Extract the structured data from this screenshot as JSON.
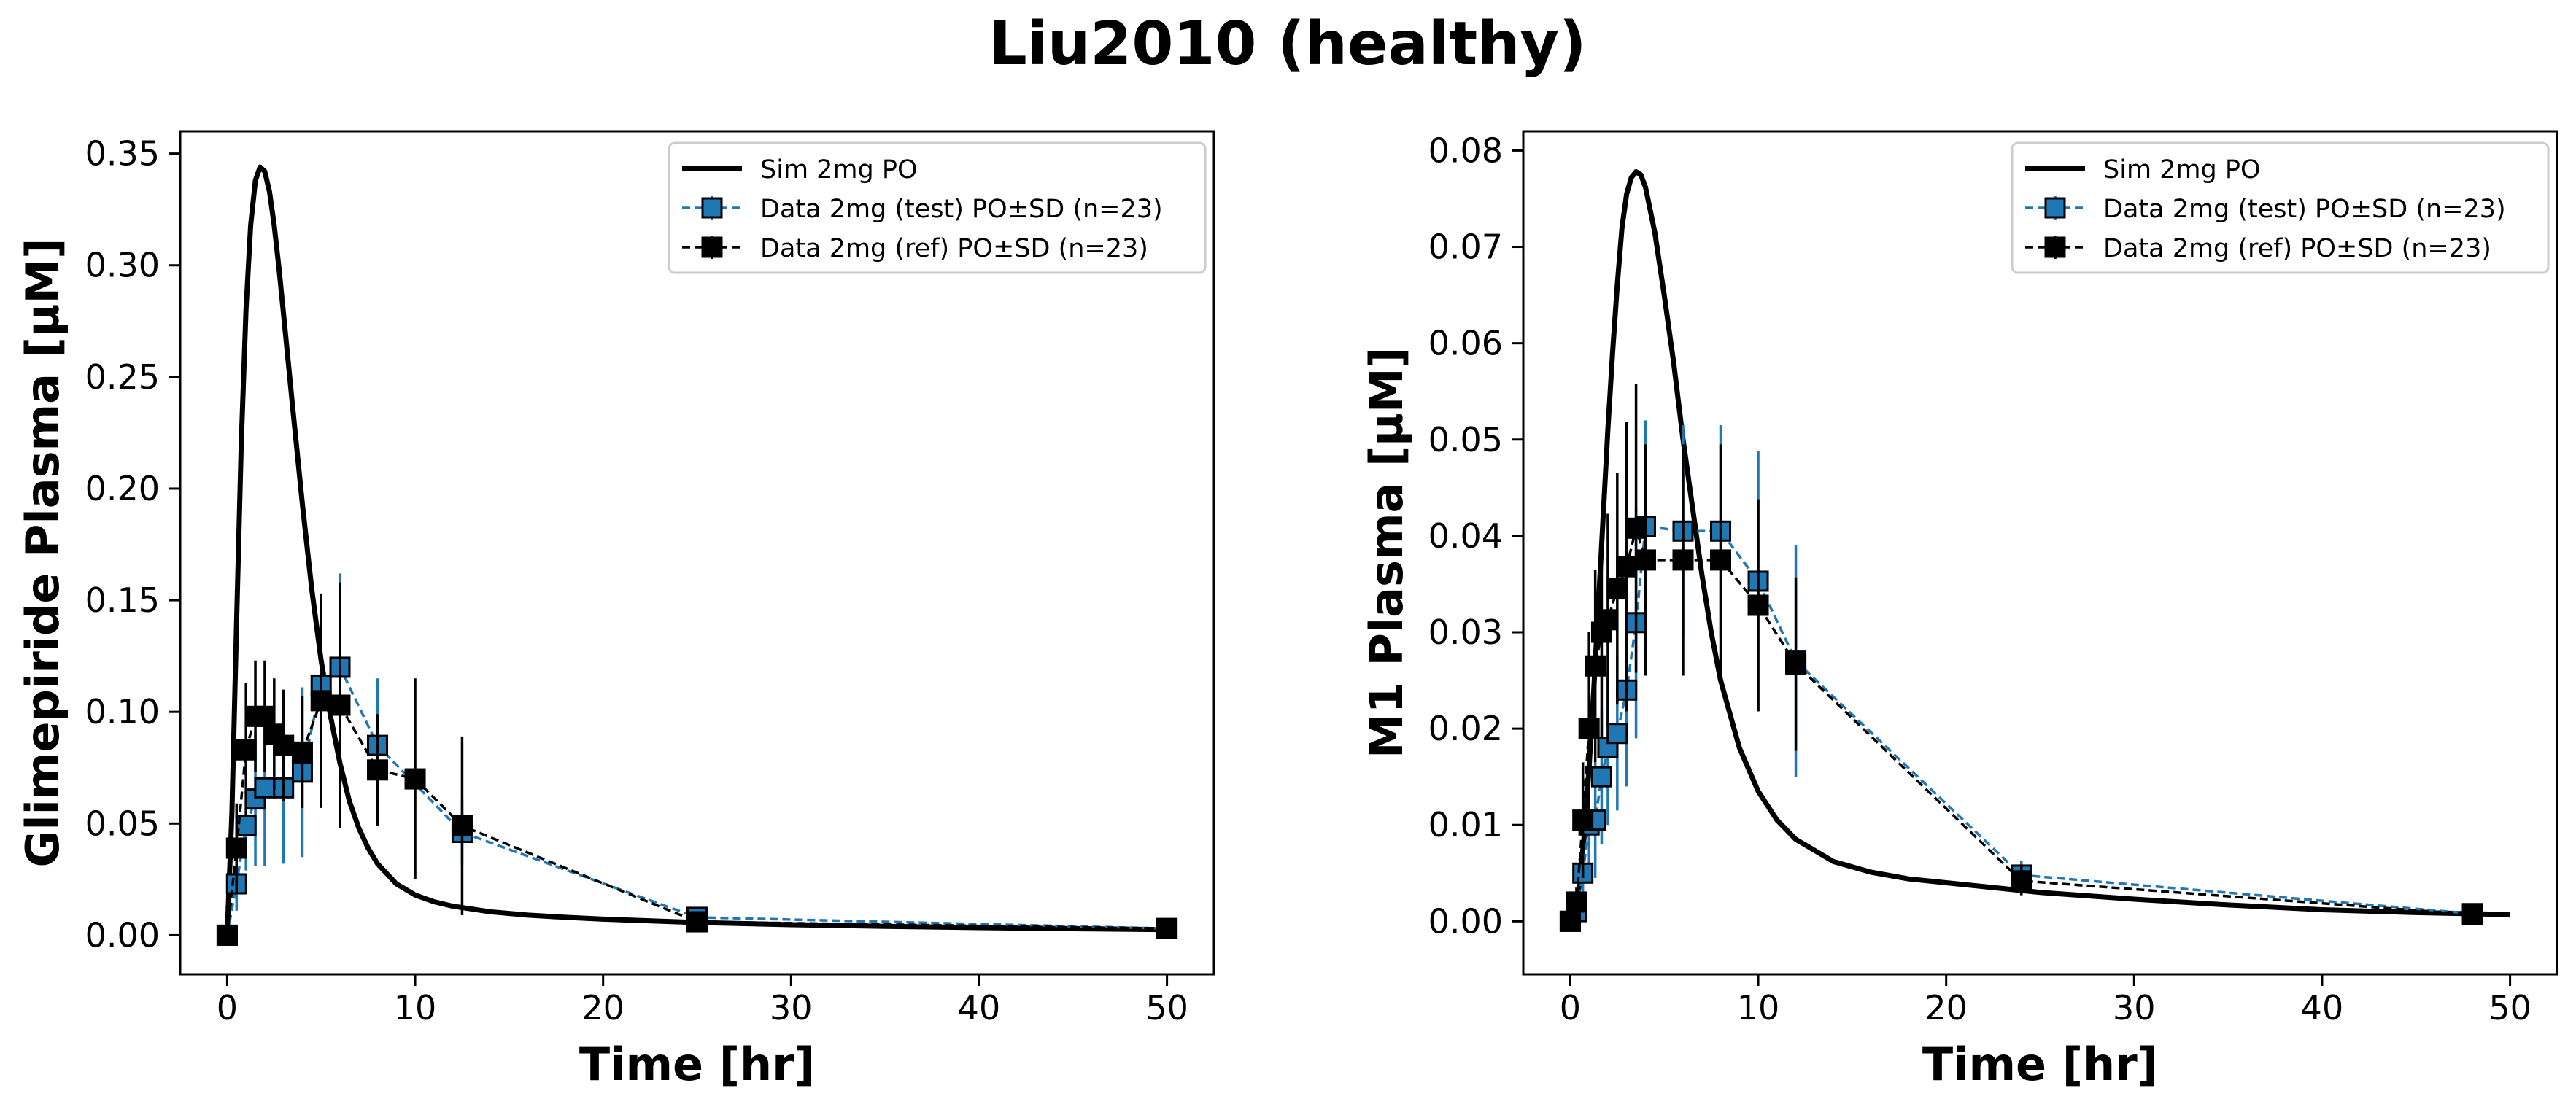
{
  "figure": {
    "title": "Liu2010 (healthy)"
  },
  "colors": {
    "sim": "#000000",
    "test": "#1f77b4",
    "ref": "#000000"
  },
  "chart_data": [
    {
      "type": "line",
      "panel": "left",
      "xlabel": "Time [hr]",
      "ylabel": "Glimepiride Plasma [µM]",
      "xlim": [
        -2.5,
        52.5
      ],
      "ylim": [
        -0.0175,
        0.36
      ],
      "xticks": [
        0,
        10,
        20,
        30,
        40,
        50
      ],
      "yticks": [
        0.0,
        0.05,
        0.1,
        0.15,
        0.2,
        0.25,
        0.3,
        0.35
      ],
      "ytick_labels": [
        "0.00",
        "0.05",
        "0.10",
        "0.15",
        "0.20",
        "0.25",
        "0.30",
        "0.35"
      ],
      "legend_position": "top-right",
      "series": [
        {
          "name": "Sim 2mg PO",
          "kind": "sim",
          "x": [
            0,
            0.25,
            0.5,
            0.75,
            1,
            1.25,
            1.5,
            1.75,
            2,
            2.25,
            2.5,
            2.75,
            3,
            3.5,
            4,
            4.5,
            5,
            5.5,
            6,
            6.5,
            7,
            7.5,
            8,
            9,
            10,
            11,
            12,
            14,
            16,
            18,
            20,
            25,
            30,
            35,
            40,
            45,
            50
          ],
          "y": [
            0,
            0.055,
            0.14,
            0.22,
            0.28,
            0.318,
            0.338,
            0.344,
            0.342,
            0.333,
            0.318,
            0.299,
            0.278,
            0.235,
            0.193,
            0.155,
            0.123,
            0.098,
            0.077,
            0.06,
            0.048,
            0.039,
            0.032,
            0.023,
            0.018,
            0.015,
            0.013,
            0.0105,
            0.009,
            0.008,
            0.0072,
            0.0057,
            0.0047,
            0.004,
            0.0034,
            0.0029,
            0.0025
          ]
        },
        {
          "name": "Data 2mg (test) PO±SD (n=23)",
          "kind": "test",
          "x": [
            0,
            0.5,
            1,
            1.5,
            2,
            3,
            4,
            5,
            6,
            8,
            12.5,
            25,
            50
          ],
          "y": [
            0,
            0.023,
            0.049,
            0.061,
            0.066,
            0.066,
            0.073,
            0.112,
            0.12,
            0.085,
            0.046,
            0.008,
            0.003
          ],
          "sd": [
            0,
            0.012,
            0.02,
            0.03,
            0.035,
            0.034,
            0.038,
            0.04,
            0.042,
            0.03,
            0.015,
            0.003,
            0.0015
          ]
        },
        {
          "name": "Data 2mg (ref) PO±SD (n=23)",
          "kind": "ref",
          "x": [
            0,
            0.5,
            1,
            1.5,
            2,
            2.5,
            3,
            4,
            5,
            6,
            8,
            10,
            12.5,
            25,
            50
          ],
          "y": [
            0,
            0.039,
            0.083,
            0.098,
            0.098,
            0.09,
            0.085,
            0.082,
            0.105,
            0.103,
            0.074,
            0.07,
            0.049,
            0.006,
            0.003
          ],
          "sd": [
            0,
            0.02,
            0.03,
            0.025,
            0.025,
            0.025,
            0.025,
            0.025,
            0.048,
            0.055,
            0.025,
            0.045,
            0.04,
            0.004,
            0.0015
          ]
        }
      ]
    },
    {
      "type": "line",
      "panel": "right",
      "xlabel": "Time [hr]",
      "ylabel": "M1 Plasma [µM]",
      "xlim": [
        -2.5,
        52.5
      ],
      "ylim": [
        -0.0055,
        0.082
      ],
      "xticks": [
        0,
        10,
        20,
        30,
        40,
        50
      ],
      "yticks": [
        0.0,
        0.01,
        0.02,
        0.03,
        0.04,
        0.05,
        0.06,
        0.07,
        0.08
      ],
      "ytick_labels": [
        "0.00",
        "0.01",
        "0.02",
        "0.03",
        "0.04",
        "0.05",
        "0.06",
        "0.07",
        "0.08"
      ],
      "legend_position": "top-right",
      "series": [
        {
          "name": "Sim 2mg PO",
          "kind": "sim",
          "x": [
            0,
            0.25,
            0.5,
            0.75,
            1,
            1.25,
            1.5,
            1.75,
            2,
            2.25,
            2.5,
            2.75,
            3,
            3.25,
            3.5,
            3.75,
            4,
            4.5,
            5,
            5.5,
            6,
            6.5,
            7,
            7.5,
            8,
            9,
            10,
            11,
            12,
            14,
            16,
            18,
            20,
            25,
            30,
            35,
            40,
            45,
            50
          ],
          "y": [
            0,
            0.001,
            0.004,
            0.009,
            0.016,
            0.024,
            0.033,
            0.042,
            0.051,
            0.059,
            0.066,
            0.072,
            0.0755,
            0.0772,
            0.0778,
            0.0775,
            0.0762,
            0.0715,
            0.065,
            0.058,
            0.05,
            0.043,
            0.036,
            0.03,
            0.025,
            0.018,
            0.0135,
            0.0105,
            0.0085,
            0.0062,
            0.0051,
            0.0044,
            0.004,
            0.003,
            0.0023,
            0.0017,
            0.0012,
            0.0009,
            0.0007
          ]
        },
        {
          "name": "Data 2mg (test) PO±SD (n=23)",
          "kind": "test",
          "x": [
            0,
            0.33,
            0.67,
            1,
            1.33,
            1.67,
            2,
            2.5,
            3,
            3.5,
            4,
            6,
            8,
            10,
            12,
            24,
            48
          ],
          "y": [
            0,
            0.001,
            0.005,
            0.01,
            0.0105,
            0.015,
            0.018,
            0.0195,
            0.024,
            0.031,
            0.041,
            0.0405,
            0.0405,
            0.0353,
            0.027,
            0.0048,
            0.0008
          ],
          "sd": [
            0,
            0.0008,
            0.003,
            0.005,
            0.006,
            0.007,
            0.008,
            0.008,
            0.01,
            0.012,
            0.011,
            0.011,
            0.011,
            0.0135,
            0.012,
            0.0015,
            0.0005
          ]
        },
        {
          "name": "Data 2mg (ref) PO±SD (n=23)",
          "kind": "ref",
          "x": [
            0,
            0.33,
            0.67,
            1,
            1.33,
            1.67,
            2,
            2.5,
            3,
            3.5,
            4,
            6,
            8,
            10,
            12,
            24,
            48
          ],
          "y": [
            0,
            0.002,
            0.0105,
            0.02,
            0.0265,
            0.03,
            0.0313,
            0.0345,
            0.0368,
            0.0408,
            0.0375,
            0.0375,
            0.0375,
            0.0328,
            0.0267,
            0.0042,
            0.0007
          ],
          "sd": [
            0,
            0.0015,
            0.006,
            0.01,
            0.01,
            0.011,
            0.011,
            0.012,
            0.015,
            0.015,
            0.012,
            0.012,
            0.012,
            0.011,
            0.009,
            0.0015,
            0.0005
          ]
        }
      ]
    }
  ]
}
